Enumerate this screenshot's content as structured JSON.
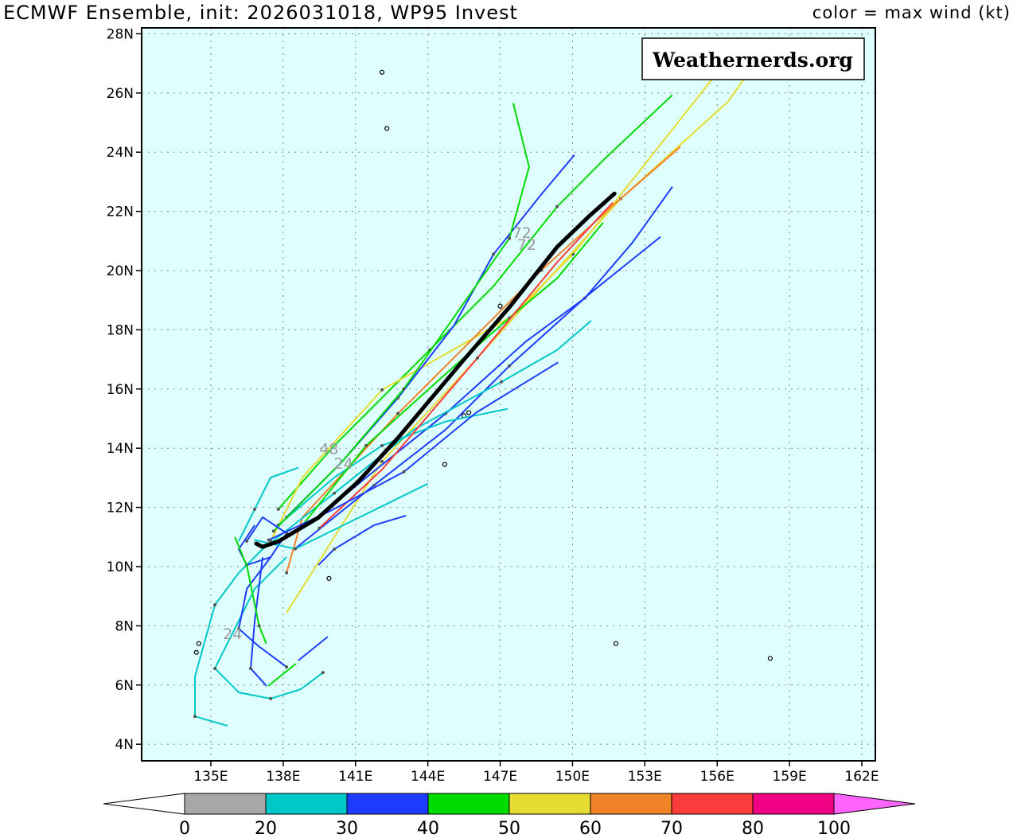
{
  "header": {
    "title": "ECMWF Ensemble, init: 2026031018, WP95 Invest",
    "legend_title": "color = max wind (kt)"
  },
  "watermark": "Weathernerds.org",
  "chart_data": {
    "type": "map-tracks",
    "lon_range": [
      132.13,
      162.56
    ],
    "lat_range": [
      3.44,
      28.2
    ],
    "lon_ticks": [
      135,
      138,
      141,
      144,
      147,
      150,
      153,
      156,
      159,
      162
    ],
    "lon_tick_labels": [
      "135E",
      "138E",
      "141E",
      "144E",
      "147E",
      "150E",
      "153E",
      "156E",
      "159E",
      "162E"
    ],
    "lat_ticks": [
      4,
      6,
      8,
      10,
      12,
      14,
      16,
      18,
      20,
      22,
      24,
      26,
      28
    ],
    "lat_tick_labels": [
      "4N",
      "6N",
      "8N",
      "10N",
      "12N",
      "14N",
      "16N",
      "18N",
      "20N",
      "22N",
      "24N",
      "26N",
      "28N"
    ],
    "grid": true,
    "background": "#dfffff",
    "colorbar": {
      "bounds": [
        "0",
        "20",
        "30",
        "40",
        "50",
        "60",
        "70",
        "80",
        "100"
      ],
      "colors": [
        "#a8a8a8",
        "#00c8c8",
        "#1e3cff",
        "#00dc00",
        "#e6dc32",
        "#f08228",
        "#fa3c3c",
        "#f00082"
      ],
      "under_color": "#ffffff",
      "over_color": "#ff64ff"
    },
    "mean_track": {
      "color": "#000000",
      "points": [
        [
          136.88,
          10.78
        ],
        [
          137.14,
          10.67
        ],
        [
          137.8,
          10.85
        ],
        [
          139.45,
          11.65
        ],
        [
          141.1,
          12.86
        ],
        [
          142.75,
          14.34
        ],
        [
          145.4,
          16.9
        ],
        [
          147.4,
          18.78
        ],
        [
          149.36,
          20.8
        ],
        [
          150.68,
          21.83
        ],
        [
          151.74,
          22.6
        ]
      ]
    },
    "tracks": [
      {
        "color": "#00dc00",
        "points": [
          [
            154.14,
            25.93
          ],
          [
            151.34,
            23.78
          ],
          [
            149.36,
            22.16
          ],
          [
            146.72,
            19.47
          ],
          [
            144.08,
            17.32
          ],
          [
            140.12,
            14.09
          ],
          [
            137.8,
            11.94
          ]
        ]
      },
      {
        "color": "#e6dc32",
        "points": [
          [
            155.79,
            26.47
          ],
          [
            152.66,
            23.24
          ],
          [
            150.02,
            20.55
          ],
          [
            147.38,
            18.4
          ],
          [
            142.1,
            15.97
          ],
          [
            138.8,
            13.01
          ],
          [
            137.48,
            10.86
          ]
        ]
      },
      {
        "color": "#e6dc32",
        "points": [
          [
            157.11,
            26.47
          ],
          [
            156.45,
            25.71
          ],
          [
            152.0,
            22.43
          ],
          [
            146.06,
            17.05
          ],
          [
            142.1,
            13.55
          ],
          [
            138.14,
            8.44
          ]
        ]
      },
      {
        "color": "#f08228",
        "points": [
          [
            154.47,
            24.18
          ],
          [
            152.0,
            22.43
          ],
          [
            148.7,
            20.01
          ],
          [
            144.74,
            16.78
          ],
          [
            142.76,
            15.17
          ],
          [
            138.8,
            11.67
          ],
          [
            138.14,
            9.79
          ]
        ]
      },
      {
        "color": "#1e3cff",
        "points": [
          [
            154.14,
            22.83
          ],
          [
            152.49,
            20.95
          ],
          [
            150.51,
            19.07
          ],
          [
            148.04,
            17.59
          ],
          [
            144.74,
            15.17
          ],
          [
            141.44,
            13.01
          ],
          [
            139.46,
            11.67
          ]
        ]
      },
      {
        "color": "#1e3cff",
        "points": [
          [
            153.65,
            21.14
          ],
          [
            150.68,
            19.2
          ],
          [
            147.38,
            16.78
          ],
          [
            144.74,
            14.63
          ],
          [
            141.77,
            12.75
          ],
          [
            138.47,
            10.59
          ]
        ]
      },
      {
        "color": "#1e3cff",
        "points": [
          [
            150.08,
            23.91
          ],
          [
            148.7,
            22.57
          ],
          [
            146.72,
            20.55
          ],
          [
            145.07,
            18.13
          ],
          [
            142.76,
            15.7
          ],
          [
            140.45,
            13.55
          ],
          [
            138.14,
            11.67
          ]
        ]
      },
      {
        "color": "#00c8c8",
        "points": [
          [
            150.78,
            18.31
          ],
          [
            149.36,
            17.32
          ],
          [
            147.05,
            16.24
          ],
          [
            143.42,
            14.63
          ],
          [
            140.12,
            12.48
          ],
          [
            137.15,
            10.59
          ]
        ]
      },
      {
        "color": "#00c8c8",
        "points": [
          [
            147.31,
            15.33
          ],
          [
            144.74,
            14.9
          ],
          [
            142.1,
            14.09
          ],
          [
            140.12,
            13.01
          ],
          [
            137.8,
            11.4
          ]
        ]
      },
      {
        "color": "#00dc00",
        "points": [
          [
            151.27,
            21.62
          ],
          [
            149.36,
            19.74
          ],
          [
            147.38,
            18.4
          ],
          [
            144.74,
            16.51
          ],
          [
            141.44,
            14.09
          ],
          [
            138.8,
            11.4
          ]
        ]
      },
      {
        "color": "#00dc00",
        "points": [
          [
            147.54,
            25.66
          ],
          [
            148.2,
            23.5
          ],
          [
            147.38,
            21.09
          ],
          [
            145.4,
            18.8
          ],
          [
            143.0,
            16.0
          ],
          [
            140.5,
            13.6
          ],
          [
            137.6,
            11.2
          ]
        ]
      },
      {
        "color": "#fa3c3c",
        "points": [
          [
            151.67,
            22.3
          ],
          [
            149.36,
            20.28
          ],
          [
            146.06,
            17.05
          ],
          [
            142.1,
            13.28
          ],
          [
            139.5,
            11.3
          ]
        ]
      },
      {
        "color": "#00c8c8",
        "points": [
          [
            137.15,
            10.59
          ],
          [
            136.16,
            9.79
          ],
          [
            135.17,
            8.71
          ],
          [
            134.34,
            6.29
          ],
          [
            134.34,
            4.94
          ],
          [
            135.69,
            4.62
          ]
        ]
      },
      {
        "color": "#00c8c8",
        "points": [
          [
            138.14,
            10.32
          ],
          [
            136.82,
            9.25
          ],
          [
            135.17,
            6.56
          ],
          [
            136.16,
            5.75
          ],
          [
            137.48,
            5.54
          ],
          [
            138.73,
            5.86
          ],
          [
            139.65,
            6.42
          ]
        ]
      },
      {
        "color": "#1e3cff",
        "points": [
          [
            137.48,
            10.32
          ],
          [
            136.49,
            9.25
          ],
          [
            136.16,
            7.9
          ],
          [
            136.98,
            7.31
          ],
          [
            138.14,
            6.61
          ]
        ]
      },
      {
        "color": "#1e3cff",
        "points": [
          [
            137.15,
            10.32
          ],
          [
            136.82,
            8.17
          ],
          [
            136.65,
            6.56
          ],
          [
            137.31,
            5.97
          ]
        ]
      },
      {
        "color": "#00dc00",
        "points": [
          [
            137.38,
            5.97
          ],
          [
            138.53,
            6.72
          ]
        ]
      },
      {
        "color": "#1e3cff",
        "points": [
          [
            138.63,
            6.83
          ],
          [
            139.85,
            7.63
          ]
        ]
      },
      {
        "color": "#1e3cff",
        "points": [
          [
            143.09,
            11.72
          ],
          [
            141.77,
            11.4
          ],
          [
            140.12,
            10.59
          ],
          [
            139.46,
            10.05
          ]
        ]
      },
      {
        "color": "#1e3cff",
        "points": [
          [
            136.82,
            11.4
          ],
          [
            136.16,
            10.59
          ],
          [
            136.49,
            10.05
          ],
          [
            137.48,
            10.32
          ],
          [
            138.14,
            11.13
          ],
          [
            137.15,
            11.67
          ],
          [
            136.49,
            10.86
          ]
        ]
      },
      {
        "color": "#00c8c8",
        "points": [
          [
            138.63,
            13.34
          ],
          [
            137.48,
            13.01
          ],
          [
            136.82,
            11.94
          ],
          [
            136.16,
            10.86
          ]
        ]
      },
      {
        "color": "#1e3cff",
        "points": [
          [
            149.4,
            16.9
          ],
          [
            146.0,
            15.2
          ],
          [
            143.0,
            13.2
          ],
          [
            140.0,
            11.9
          ],
          [
            137.4,
            10.9
          ]
        ]
      },
      {
        "color": "#00c8c8",
        "points": [
          [
            144.0,
            12.8
          ],
          [
            141.0,
            11.6
          ],
          [
            138.5,
            10.6
          ],
          [
            136.8,
            10.9
          ]
        ]
      },
      {
        "color": "#00dc00",
        "points": [
          [
            136.0,
            11.0
          ],
          [
            136.5,
            10.0
          ],
          [
            137.0,
            8.0
          ],
          [
            137.3,
            7.4
          ]
        ]
      }
    ],
    "hour_labels": [
      {
        "text": "24",
        "lon": 135.9,
        "lat": 7.55
      },
      {
        "text": "48",
        "lon": 139.9,
        "lat": 13.8
      },
      {
        "text": "24",
        "lon": 140.5,
        "lat": 13.3
      },
      {
        "text": "72",
        "lon": 147.9,
        "lat": 21.1
      },
      {
        "text": "72",
        "lon": 148.1,
        "lat": 20.7
      }
    ],
    "islands": [
      [
        134.5,
        7.4
      ],
      [
        134.4,
        7.1
      ],
      [
        144.7,
        13.45
      ],
      [
        145.5,
        15.1
      ],
      [
        145.7,
        15.2
      ],
      [
        147.0,
        18.8
      ],
      [
        151.8,
        7.4
      ],
      [
        158.2,
        6.9
      ],
      [
        139.9,
        9.6
      ],
      [
        142.1,
        26.7
      ],
      [
        142.3,
        24.8
      ]
    ]
  }
}
